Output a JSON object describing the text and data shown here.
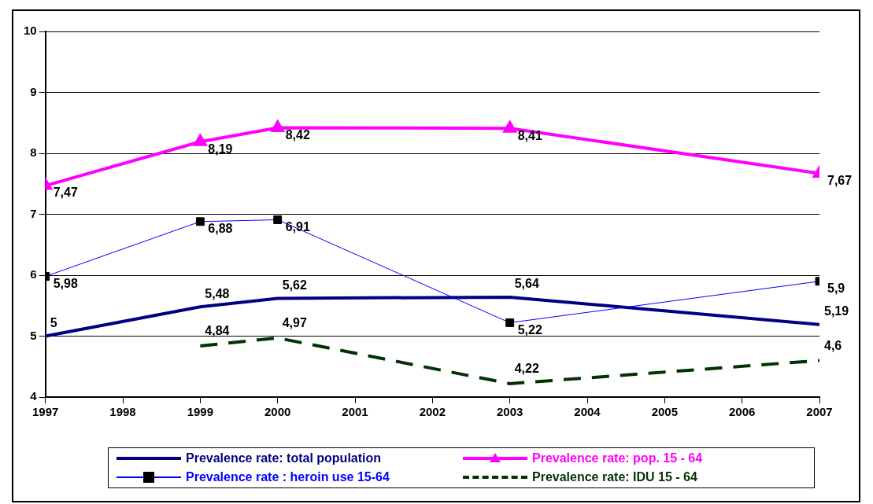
{
  "chart_data": {
    "type": "line",
    "x": [
      1997,
      1999,
      2000,
      2003,
      2007
    ],
    "series": [
      {
        "name": "Prevalence rate: total population",
        "color": "#000080",
        "values": [
          5,
          5.48,
          5.62,
          5.64,
          5.19
        ],
        "value_labels": [
          "5",
          "5,48",
          "5,62",
          "5,64",
          "5,19"
        ],
        "marker": "none",
        "line_style": "solid"
      },
      {
        "name": "Prevalence rate: pop. 15 - 64",
        "color": "#ff00ff",
        "values": [
          7.47,
          8.19,
          8.42,
          8.41,
          7.67
        ],
        "value_labels": [
          "7,47",
          "8,19",
          "8,42",
          "8,41",
          "7,67"
        ],
        "marker": "triangle",
        "line_style": "solid"
      },
      {
        "name": "Prevalence rate : heroin use 15-64",
        "color": "#0000ff",
        "values": [
          5.98,
          6.88,
          6.91,
          5.22,
          5.9
        ],
        "value_labels": [
          "5,98",
          "6,88",
          "6,91",
          "5,22",
          "5,9"
        ],
        "marker": "square",
        "line_style": "solid"
      },
      {
        "name": "Prevalence rate: IDU 15 - 64",
        "color": "#003300",
        "values": [
          null,
          4.84,
          4.97,
          4.22,
          4.6
        ],
        "value_labels": [
          null,
          "4,84",
          "4,97",
          "4,22",
          "4,6"
        ],
        "marker": "none",
        "line_style": "dashed"
      }
    ],
    "xlim": [
      1997,
      2007
    ],
    "xticks": [
      1997,
      1998,
      1999,
      2000,
      2001,
      2002,
      2003,
      2004,
      2005,
      2006,
      2007
    ],
    "ylim": [
      4,
      10
    ],
    "yticks": [
      4,
      5,
      6,
      7,
      8,
      9,
      10
    ],
    "grid": "y",
    "legend": "bottom"
  }
}
